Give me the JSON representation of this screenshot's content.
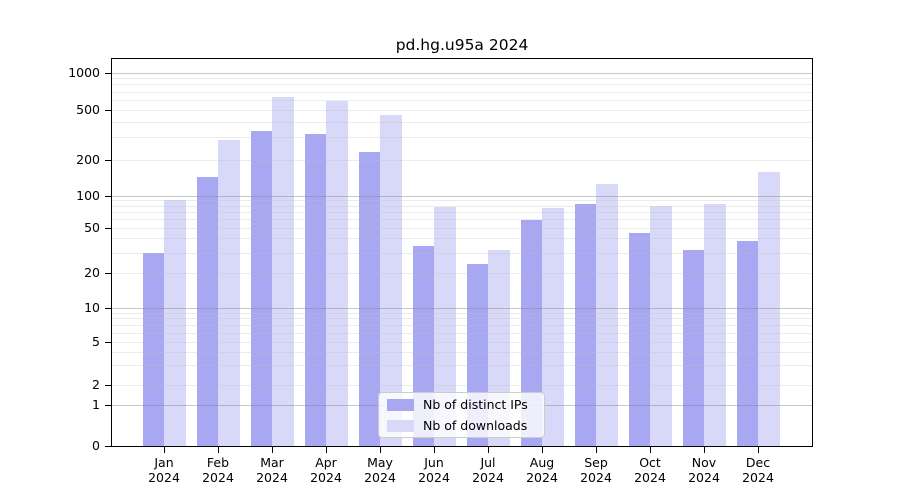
{
  "title": "pd.hg.u95a 2024",
  "chart_data": {
    "type": "bar",
    "title": "pd.hg.u95a 2024",
    "categories": [
      "Jan",
      "Feb",
      "Mar",
      "Apr",
      "May",
      "Jun",
      "Jul",
      "Aug",
      "Sep",
      "Oct",
      "Nov",
      "Dec"
    ],
    "year": "2024",
    "series": [
      {
        "name": "Nb of distinct IPs",
        "color": "#a8a8f2",
        "values": [
          30,
          145,
          340,
          320,
          230,
          35,
          24,
          60,
          85,
          45,
          32,
          38
        ]
      },
      {
        "name": "Nb of downloads",
        "color": "#d8d8f8",
        "values": [
          92,
          290,
          640,
          595,
          460,
          78,
          32,
          77,
          125,
          80,
          85,
          160
        ]
      }
    ],
    "xlabel": "",
    "ylabel": "",
    "y_scale": "symlog",
    "y_tick_labels": [
      "0",
      "1",
      "2",
      "5",
      "10",
      "20",
      "50",
      "100",
      "200",
      "500",
      "1000"
    ],
    "y_tick_values": [
      0,
      1,
      2,
      5,
      10,
      20,
      50,
      100,
      200,
      500,
      1000
    ],
    "ylim": [
      0,
      1340
    ],
    "grid": true,
    "legend_position": "lower center-left",
    "legend_entries": [
      "Nb of distinct IPs",
      "Nb of downloads"
    ]
  },
  "colors": {
    "ips_bar": "#a8a8f2",
    "downloads_bar": "#d8d8f8",
    "major_gridline": "#8c8c8c",
    "minor_gridline": "#dcdcdc",
    "axis": "#000000",
    "legend_border": "#cccccc",
    "background": "#ffffff"
  }
}
